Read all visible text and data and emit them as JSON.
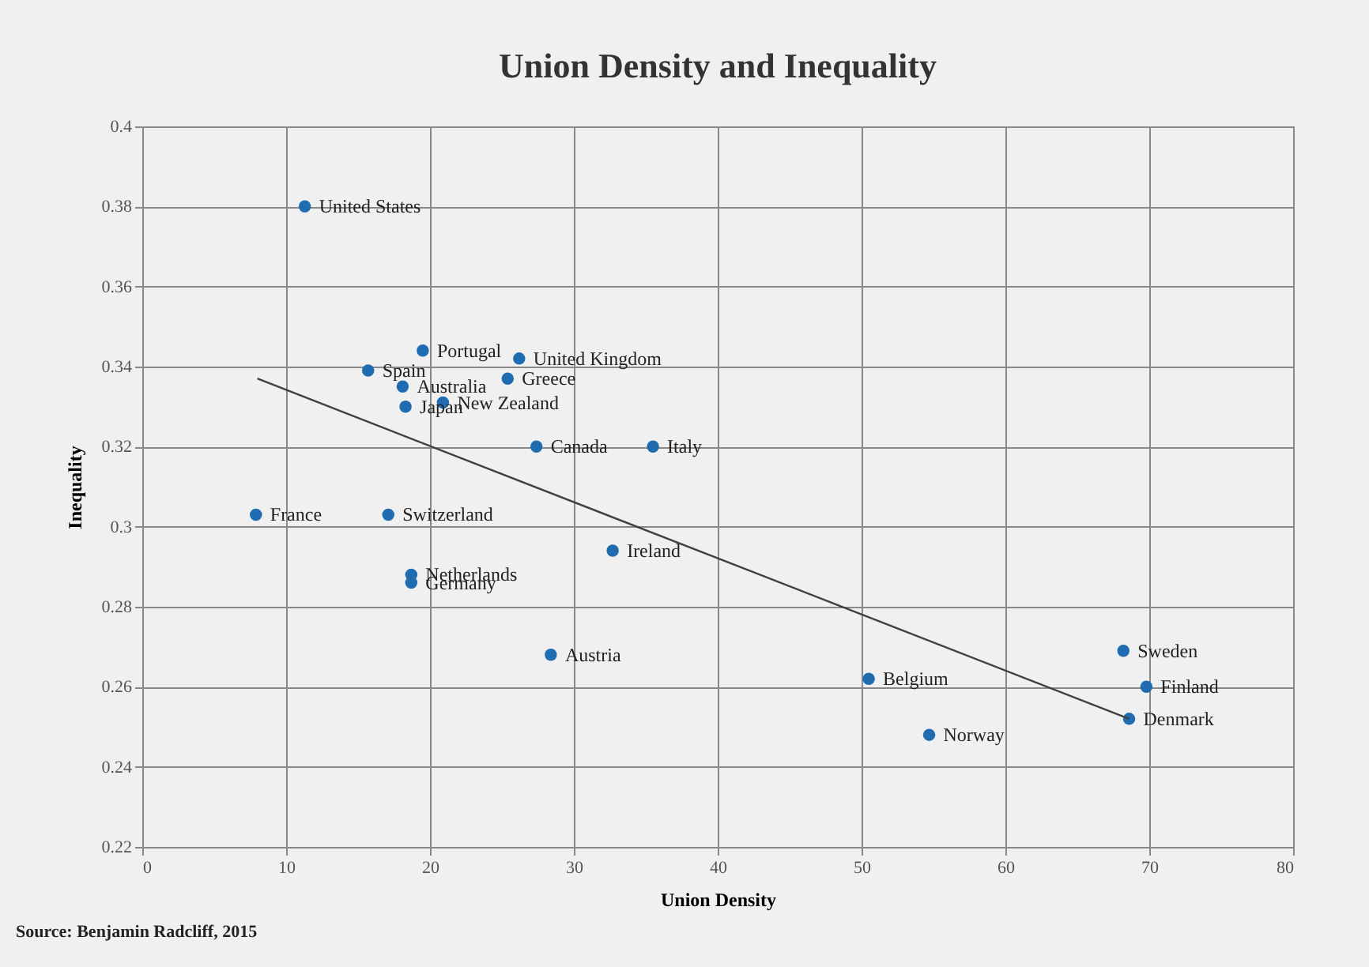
{
  "chart_data": {
    "type": "scatter",
    "title": "Union Density and Inequality",
    "xlabel": "Union Density",
    "ylabel": "Inequality",
    "xlim": [
      0,
      80
    ],
    "xticks": [
      0,
      10,
      20,
      30,
      40,
      50,
      60,
      70,
      80
    ],
    "ylim": [
      0.22,
      0.4
    ],
    "yticks": [
      0.22,
      0.24,
      0.26,
      0.28,
      0.3,
      0.32,
      0.34,
      0.36,
      0.38,
      0.4
    ],
    "grid": true,
    "legend": false,
    "annotations": [
      "Source: Benjamin Radcliff, 2015"
    ],
    "series": [
      {
        "marker": "circle",
        "color": "#1f6db0",
        "x": [
          11.3,
          15.7,
          19.5,
          26.2,
          25.4,
          18.1,
          18.3,
          20.9,
          27.4,
          35.5,
          7.9,
          17.1,
          18.7,
          18.7,
          32.7,
          28.4,
          50.5,
          54.7,
          68.2,
          69.8,
          68.6
        ],
        "values": [
          0.38,
          0.339,
          0.344,
          0.342,
          0.337,
          0.335,
          0.33,
          0.331,
          0.32,
          0.32,
          0.303,
          0.303,
          0.288,
          0.286,
          0.294,
          0.268,
          0.262,
          0.248,
          0.269,
          0.26,
          0.252
        ],
        "value_labels": [
          "United States",
          "Spain",
          "Portugal",
          "United Kingdom",
          "Greece",
          "Australia",
          "Japan",
          "New Zealand",
          "Canada",
          "Italy",
          "France",
          "Switzerland",
          "Netherlands",
          "Germany",
          "Ireland",
          "Austria",
          "Belgium",
          "Norway",
          "Sweden",
          "Finland",
          "Denmark"
        ]
      },
      {
        "type": "line",
        "color": "#404040",
        "x": [
          8,
          68.6
        ],
        "values": [
          0.337,
          0.252
        ]
      }
    ]
  }
}
